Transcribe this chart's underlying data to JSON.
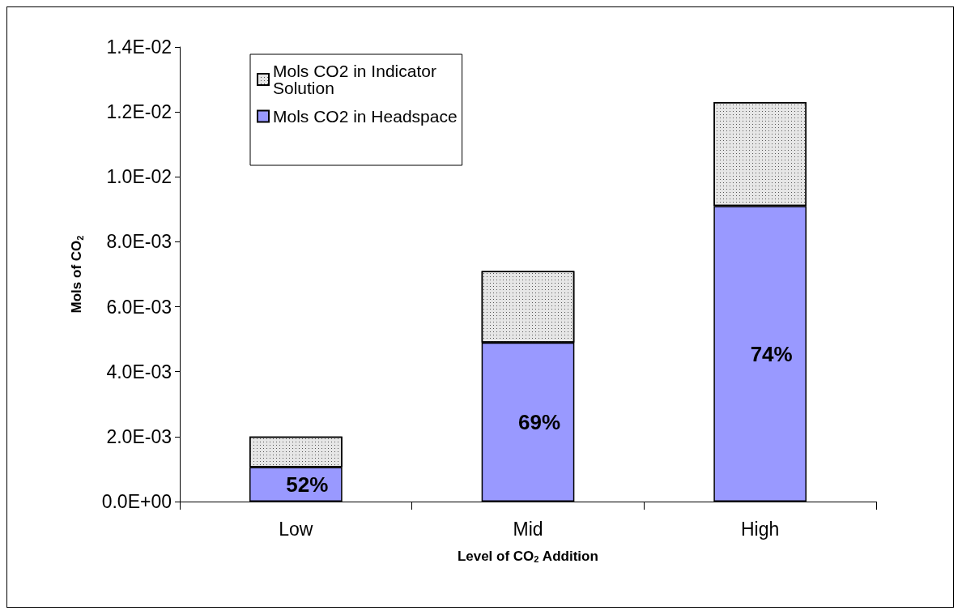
{
  "chart_data": {
    "type": "bar",
    "stacked": true,
    "xlabel": "Level of CO$_{2}$ Addition",
    "ylabel": "Mols of CO$_{2}$",
    "categories": [
      "Low",
      "Mid",
      "High"
    ],
    "series": [
      {
        "name": "Mols CO2 in Headspace",
        "color": "#9999ff",
        "values": [
          0.00106,
          0.0049,
          0.0091
        ]
      },
      {
        "name": "Mols CO2 in Indicator Solution",
        "color": "#e6e6e6",
        "values": [
          0.00094,
          0.0022,
          0.0032
        ]
      }
    ],
    "ylim": [
      0,
      0.014
    ],
    "yticks": [
      {
        "value": 0,
        "label": "0.0E+00"
      },
      {
        "value": 0.002,
        "label": "2.0E-03"
      },
      {
        "value": 0.004,
        "label": "4.0E-03"
      },
      {
        "value": 0.006,
        "label": "6.0E-03"
      },
      {
        "value": 0.008,
        "label": "8.0E-03"
      },
      {
        "value": 0.01,
        "label": "1.0E-02"
      },
      {
        "value": 0.012,
        "label": "1.2E-02"
      },
      {
        "value": 0.014,
        "label": "1.4E-02"
      }
    ],
    "annotations": [
      "52%",
      "69%",
      "74%"
    ],
    "grid": false,
    "legend": "top left"
  }
}
